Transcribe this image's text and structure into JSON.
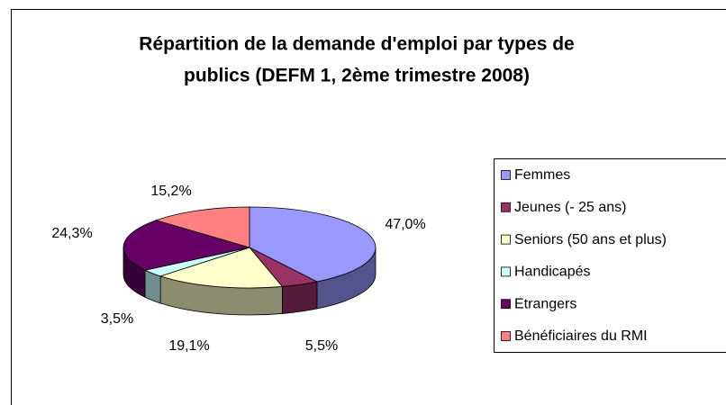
{
  "chart_data": {
    "type": "pie3d",
    "title": [
      "Répartition de la demande d'emploi par types de",
      "publics (DEFM 1, 2ème trimestre 2008)"
    ],
    "categories": [
      "Femmes",
      "Jeunes (- 25 ans)",
      "Seniors (50 ans et plus)",
      "Handicapés",
      "Etrangers",
      "Bénéficiaires du RMI"
    ],
    "values": [
      47.0,
      5.5,
      19.1,
      3.5,
      24.3,
      15.2
    ],
    "value_labels": [
      "47,0%",
      "5,5%",
      "19,1%",
      "3,5%",
      "24,3%",
      "15,2%"
    ],
    "colors": [
      "#9999ff",
      "#993366",
      "#ffffcc",
      "#ccffff",
      "#660066",
      "#ff8080"
    ],
    "legend": "right"
  }
}
